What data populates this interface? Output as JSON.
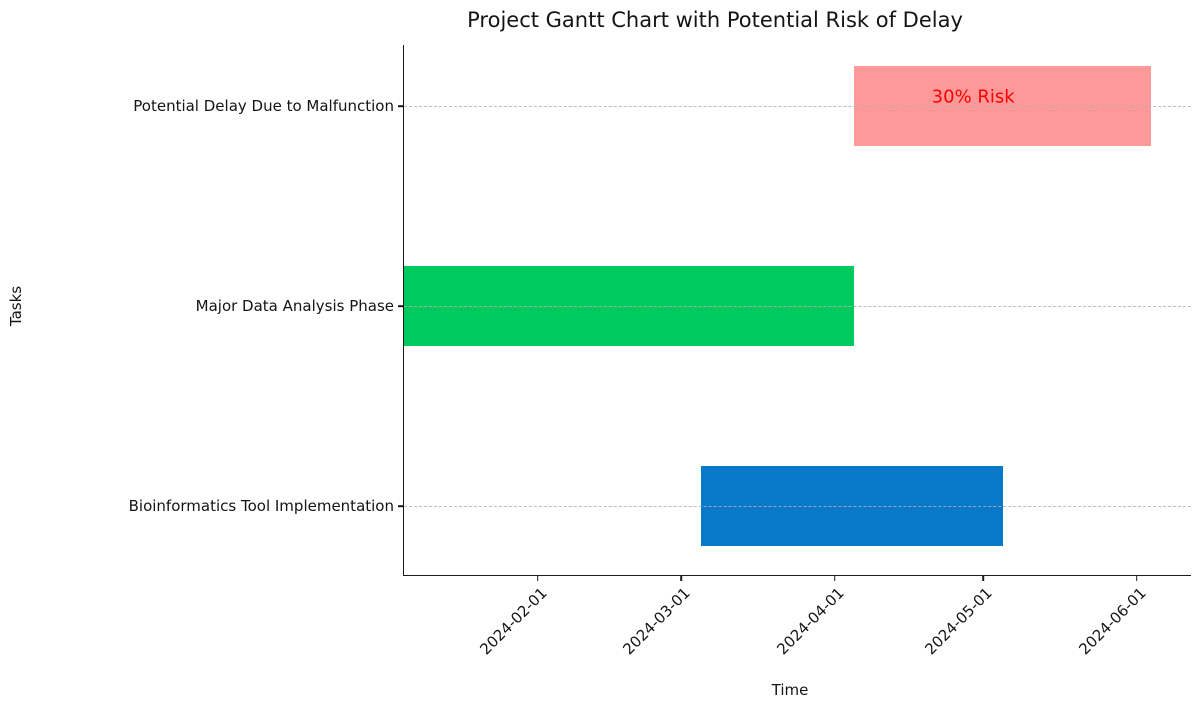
{
  "chart_data": {
    "type": "bar",
    "orientation": "horizontal",
    "variant": "gantt",
    "title": "Project Gantt Chart with Potential Risk of Delay",
    "xlabel": "Time",
    "ylabel": "Tasks",
    "xlim": [
      "2024-01-05",
      "2024-06-12"
    ],
    "x_ticks": [
      "2024-02-01",
      "2024-03-01",
      "2024-04-01",
      "2024-05-01",
      "2024-06-01"
    ],
    "grid": "horizontal-dashed",
    "legend": false,
    "tasks": [
      {
        "label": "Potential Delay Due to Malfunction",
        "start": "2024-04-05",
        "end": "2024-06-04",
        "color": "#ff9898",
        "annotation": {
          "text": "30% Risk",
          "color": "#ff0000",
          "x": "2024-04-29"
        }
      },
      {
        "label": "Major Data Analysis Phase",
        "start": "2024-01-05",
        "end": "2024-04-05",
        "color": "#00c95e"
      },
      {
        "label": "Bioinformatics Tool Implementation",
        "start": "2024-03-05",
        "end": "2024-05-05",
        "color": "#0878c8"
      }
    ],
    "colors": {
      "grid": "#b0b0b0",
      "axis": "#1a1a1a",
      "annotation_text": "#ff0000"
    }
  }
}
